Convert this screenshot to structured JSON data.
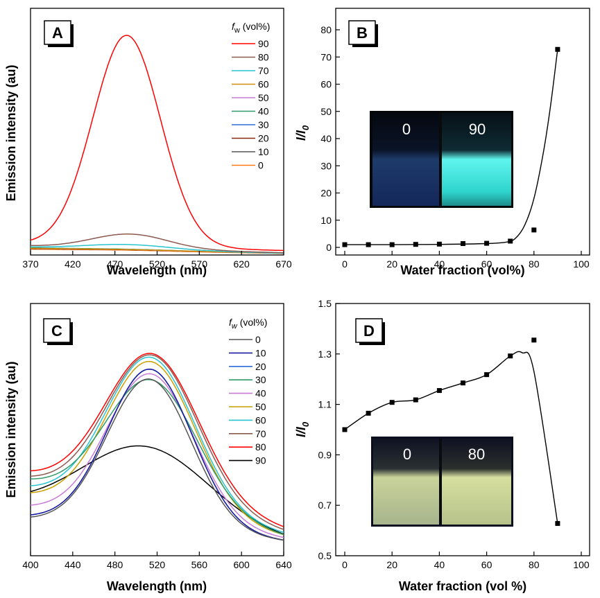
{
  "chart_data": [
    {
      "panel": "A",
      "type": "line",
      "xlabel": "Wavelength (nm)",
      "ylabel": "Emission intensity (au)",
      "xlim": [
        370,
        670
      ],
      "xticks": [
        370,
        420,
        470,
        520,
        570,
        620,
        670
      ],
      "ylim": [
        0,
        100
      ],
      "legend_title": {
        "italic": "f",
        "sub": "w",
        "rest": " (vol%)"
      },
      "legend_position": "top-right",
      "series": [
        {
          "name": "90",
          "color": "#ff0000",
          "baseline": [
            5,
            2
          ],
          "peak": 94,
          "center": 484,
          "sigma": 40
        },
        {
          "name": "80",
          "color": "#8b5a4f",
          "baseline": [
            4,
            1
          ],
          "peak": 6.5,
          "center": 488,
          "sigma": 45
        },
        {
          "name": "70",
          "color": "#29c4d0",
          "baseline": [
            3.5,
            0.8
          ],
          "peak": 2.2,
          "center": 485,
          "sigma": 50
        },
        {
          "name": "60",
          "color": "#d4900d",
          "baseline": [
            3,
            0.8
          ],
          "peak": 0.3,
          "center": 485,
          "sigma": 50
        },
        {
          "name": "50",
          "color": "#c77bd6",
          "baseline": [
            3,
            0.8
          ],
          "peak": 0.3,
          "center": 485,
          "sigma": 50
        },
        {
          "name": "40",
          "color": "#2f9a6a",
          "baseline": [
            3.2,
            0.8
          ],
          "peak": 0.3,
          "center": 485,
          "sigma": 50
        },
        {
          "name": "30",
          "color": "#2b6cd8",
          "baseline": [
            3,
            0.8
          ],
          "peak": 0.3,
          "center": 485,
          "sigma": 50
        },
        {
          "name": "20",
          "color": "#8b2510",
          "baseline": [
            2.8,
            0.8
          ],
          "peak": 0.3,
          "center": 485,
          "sigma": 50
        },
        {
          "name": "10",
          "color": "#555555",
          "baseline": [
            3,
            0.8
          ],
          "peak": 0.3,
          "center": 485,
          "sigma": 50
        },
        {
          "name": "0",
          "color": "#ff7a14",
          "baseline": [
            2.6,
            0.7
          ],
          "peak": 0.3,
          "center": 485,
          "sigma": 50
        }
      ]
    },
    {
      "panel": "B",
      "type": "scatter",
      "xlabel": "Water fraction (vol%)",
      "ylabel_main": "I/I",
      "ylabel_sub": "0",
      "xlim": [
        0,
        100
      ],
      "ylim": [
        0,
        80
      ],
      "xticks": [
        0,
        20,
        40,
        60,
        80,
        100
      ],
      "yticks": [
        0,
        10,
        20,
        30,
        40,
        50,
        60,
        70,
        80
      ],
      "points": [
        {
          "x": 0,
          "y": 1.0
        },
        {
          "x": 10,
          "y": 1.0
        },
        {
          "x": 20,
          "y": 1.0
        },
        {
          "x": 30,
          "y": 1.1
        },
        {
          "x": 40,
          "y": 1.2
        },
        {
          "x": 50,
          "y": 1.4
        },
        {
          "x": 60,
          "y": 1.5
        },
        {
          "x": 70,
          "y": 2.3
        },
        {
          "x": 80,
          "y": 6.4
        },
        {
          "x": 90,
          "y": 72.8
        }
      ],
      "inset_labels": [
        "0",
        "90"
      ]
    },
    {
      "panel": "C",
      "type": "line",
      "xlabel": "Wavelength (nm)",
      "ylabel": "Emission intensity (au)",
      "xlim": [
        400,
        640
      ],
      "xticks": [
        400,
        440,
        480,
        520,
        560,
        600,
        640
      ],
      "ylim": [
        0,
        100
      ],
      "legend_title": {
        "italic": "f",
        "sub": "w",
        "rest": " (vol%)"
      },
      "legend_position": "top-right",
      "series": [
        {
          "name": "0",
          "color": "#555555",
          "peak": 69,
          "center": 512,
          "sigma": 40,
          "left": 12,
          "right": 3
        },
        {
          "name": "10",
          "color": "#1a1a9c",
          "peak": 73,
          "center": 513,
          "sigma": 40,
          "left": 13,
          "right": 3
        },
        {
          "name": "20",
          "color": "#2b6cd8",
          "peak": 73,
          "center": 513,
          "sigma": 40,
          "left": 13,
          "right": 3
        },
        {
          "name": "30",
          "color": "#2f9a6a",
          "peak": 65,
          "center": 513,
          "sigma": 43,
          "left": 28,
          "right": 5
        },
        {
          "name": "40",
          "color": "#c77bd6",
          "peak": 70,
          "center": 513,
          "sigma": 41,
          "left": 17,
          "right": 4
        },
        {
          "name": "50",
          "color": "#c9a000",
          "peak": 74,
          "center": 513,
          "sigma": 42,
          "left": 22,
          "right": 5
        },
        {
          "name": "60",
          "color": "#29c4d0",
          "peak": 75,
          "center": 513,
          "sigma": 42,
          "left": 25,
          "right": 6
        },
        {
          "name": "70",
          "color": "#8b5a4f",
          "peak": 75,
          "center": 514,
          "sigma": 43,
          "left": 29,
          "right": 7
        },
        {
          "name": "80",
          "color": "#ff0000",
          "peak": 75,
          "center": 514,
          "sigma": 44,
          "left": 31,
          "right": 8
        },
        {
          "name": "90",
          "color": "#000000",
          "peak": 39,
          "center": 505,
          "sigma": 60,
          "left": 18,
          "right": 3
        }
      ]
    },
    {
      "panel": "D",
      "type": "scatter",
      "xlabel": "Water fraction (vol %)",
      "ylabel_main": "I/I",
      "ylabel_sub": "0",
      "xlim": [
        0,
        100
      ],
      "ylim": [
        0.5,
        1.5
      ],
      "xticks": [
        0,
        20,
        40,
        60,
        80,
        100
      ],
      "yticks": [
        0.5,
        0.7,
        0.9,
        1.1,
        1.3,
        1.5
      ],
      "points": [
        {
          "x": 0,
          "y": 1.0
        },
        {
          "x": 10,
          "y": 1.065
        },
        {
          "x": 20,
          "y": 1.108
        },
        {
          "x": 30,
          "y": 1.118
        },
        {
          "x": 40,
          "y": 1.155
        },
        {
          "x": 50,
          "y": 1.185
        },
        {
          "x": 60,
          "y": 1.218
        },
        {
          "x": 70,
          "y": 1.292
        },
        {
          "x": 80,
          "y": 1.355
        },
        {
          "x": 90,
          "y": 0.628
        }
      ],
      "curve_points": [
        [
          0,
          1.0
        ],
        [
          10,
          1.065
        ],
        [
          20,
          1.108
        ],
        [
          30,
          1.118
        ],
        [
          40,
          1.155
        ],
        [
          50,
          1.185
        ],
        [
          60,
          1.218
        ],
        [
          70,
          1.292
        ],
        [
          75,
          1.305
        ],
        [
          80,
          1.23
        ],
        [
          90,
          0.628
        ]
      ],
      "inset_labels": [
        "0",
        "80"
      ]
    }
  ]
}
